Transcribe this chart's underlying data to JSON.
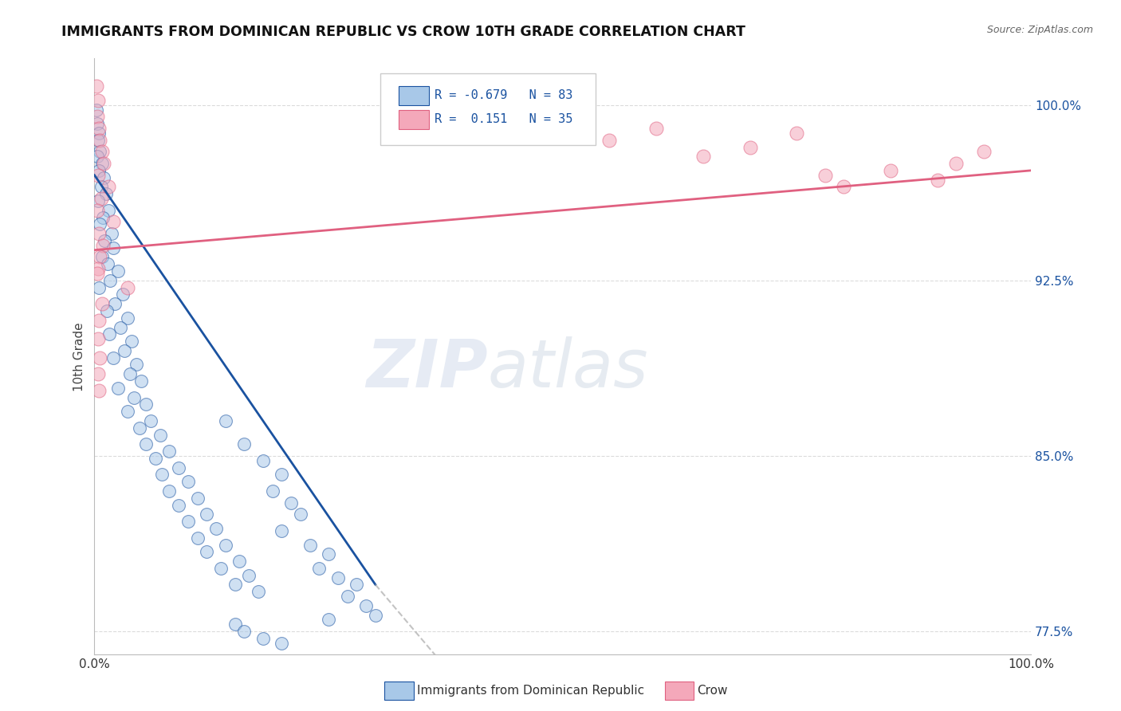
{
  "title": "IMMIGRANTS FROM DOMINICAN REPUBLIC VS CROW 10TH GRADE CORRELATION CHART",
  "source": "Source: ZipAtlas.com",
  "xlabel_blue": "Immigrants from Dominican Republic",
  "xlabel_pink": "Crow",
  "ylabel": "10th Grade",
  "r_blue": -0.679,
  "n_blue": 83,
  "r_pink": 0.151,
  "n_pink": 35,
  "xlim": [
    0.0,
    100.0
  ],
  "ylim": [
    76.5,
    102.0
  ],
  "yticks": [
    77.5,
    85.0,
    92.5,
    100.0
  ],
  "xtick_labels": [
    "0.0%",
    "100.0%"
  ],
  "ytick_labels": [
    "77.5%",
    "85.0%",
    "92.5%",
    "100.0%"
  ],
  "color_blue": "#a8c8e8",
  "color_pink": "#f4a8ba",
  "line_color_blue": "#1a52a0",
  "line_color_pink": "#e06080",
  "background_color": "#ffffff",
  "watermark_zip": "ZIP",
  "watermark_atlas": "atlas",
  "blue_points": [
    [
      0.2,
      99.8
    ],
    [
      0.3,
      99.2
    ],
    [
      0.5,
      98.8
    ],
    [
      0.4,
      98.5
    ],
    [
      0.6,
      98.0
    ],
    [
      0.3,
      97.8
    ],
    [
      0.8,
      97.5
    ],
    [
      0.5,
      97.2
    ],
    [
      1.0,
      96.9
    ],
    [
      0.7,
      96.5
    ],
    [
      1.2,
      96.2
    ],
    [
      0.4,
      95.9
    ],
    [
      1.5,
      95.5
    ],
    [
      0.9,
      95.2
    ],
    [
      0.6,
      94.9
    ],
    [
      1.8,
      94.5
    ],
    [
      1.1,
      94.2
    ],
    [
      2.0,
      93.9
    ],
    [
      0.8,
      93.5
    ],
    [
      1.4,
      93.2
    ],
    [
      2.5,
      92.9
    ],
    [
      1.7,
      92.5
    ],
    [
      0.5,
      92.2
    ],
    [
      3.0,
      91.9
    ],
    [
      2.2,
      91.5
    ],
    [
      1.3,
      91.2
    ],
    [
      3.5,
      90.9
    ],
    [
      2.8,
      90.5
    ],
    [
      1.6,
      90.2
    ],
    [
      4.0,
      89.9
    ],
    [
      3.2,
      89.5
    ],
    [
      2.0,
      89.2
    ],
    [
      4.5,
      88.9
    ],
    [
      3.8,
      88.5
    ],
    [
      5.0,
      88.2
    ],
    [
      2.5,
      87.9
    ],
    [
      4.2,
      87.5
    ],
    [
      5.5,
      87.2
    ],
    [
      3.5,
      86.9
    ],
    [
      6.0,
      86.5
    ],
    [
      4.8,
      86.2
    ],
    [
      7.0,
      85.9
    ],
    [
      5.5,
      85.5
    ],
    [
      8.0,
      85.2
    ],
    [
      6.5,
      84.9
    ],
    [
      9.0,
      84.5
    ],
    [
      7.2,
      84.2
    ],
    [
      10.0,
      83.9
    ],
    [
      8.0,
      83.5
    ],
    [
      11.0,
      83.2
    ],
    [
      9.0,
      82.9
    ],
    [
      12.0,
      82.5
    ],
    [
      10.0,
      82.2
    ],
    [
      13.0,
      81.9
    ],
    [
      11.0,
      81.5
    ],
    [
      14.0,
      81.2
    ],
    [
      12.0,
      80.9
    ],
    [
      15.5,
      80.5
    ],
    [
      13.5,
      80.2
    ],
    [
      16.5,
      79.9
    ],
    [
      15.0,
      79.5
    ],
    [
      17.5,
      79.2
    ],
    [
      14.0,
      86.5
    ],
    [
      16.0,
      85.5
    ],
    [
      18.0,
      84.8
    ],
    [
      20.0,
      84.2
    ],
    [
      19.0,
      83.5
    ],
    [
      21.0,
      83.0
    ],
    [
      22.0,
      82.5
    ],
    [
      20.0,
      81.8
    ],
    [
      23.0,
      81.2
    ],
    [
      25.0,
      80.8
    ],
    [
      24.0,
      80.2
    ],
    [
      26.0,
      79.8
    ],
    [
      28.0,
      79.5
    ],
    [
      27.0,
      79.0
    ],
    [
      29.0,
      78.6
    ],
    [
      30.0,
      78.2
    ],
    [
      25.0,
      78.0
    ],
    [
      15.0,
      77.8
    ],
    [
      16.0,
      77.5
    ],
    [
      18.0,
      77.2
    ],
    [
      20.0,
      77.0
    ]
  ],
  "pink_points": [
    [
      0.2,
      100.8
    ],
    [
      0.4,
      100.2
    ],
    [
      0.3,
      99.5
    ],
    [
      0.5,
      99.0
    ],
    [
      0.6,
      98.5
    ],
    [
      0.8,
      98.0
    ],
    [
      1.0,
      97.5
    ],
    [
      0.4,
      97.0
    ],
    [
      1.5,
      96.5
    ],
    [
      0.7,
      96.0
    ],
    [
      0.3,
      95.5
    ],
    [
      2.0,
      95.0
    ],
    [
      0.5,
      94.5
    ],
    [
      0.9,
      94.0
    ],
    [
      0.6,
      93.5
    ],
    [
      0.4,
      93.0
    ],
    [
      0.3,
      92.8
    ],
    [
      3.5,
      92.2
    ],
    [
      0.8,
      91.5
    ],
    [
      0.5,
      90.8
    ],
    [
      0.4,
      90.0
    ],
    [
      55.0,
      98.5
    ],
    [
      65.0,
      97.8
    ],
    [
      70.0,
      98.2
    ],
    [
      80.0,
      96.5
    ],
    [
      85.0,
      97.2
    ],
    [
      90.0,
      96.8
    ],
    [
      92.0,
      97.5
    ],
    [
      95.0,
      98.0
    ],
    [
      78.0,
      97.0
    ],
    [
      60.0,
      99.0
    ],
    [
      75.0,
      98.8
    ],
    [
      0.6,
      89.2
    ],
    [
      0.4,
      88.5
    ],
    [
      0.5,
      87.8
    ]
  ],
  "blue_line_x": [
    0.0,
    30.0,
    65.0
  ],
  "blue_line_y": [
    97.0,
    79.5,
    63.0
  ],
  "blue_solid_end_idx": 1,
  "pink_line_x": [
    0.0,
    100.0
  ],
  "pink_line_y": [
    93.8,
    97.2
  ]
}
